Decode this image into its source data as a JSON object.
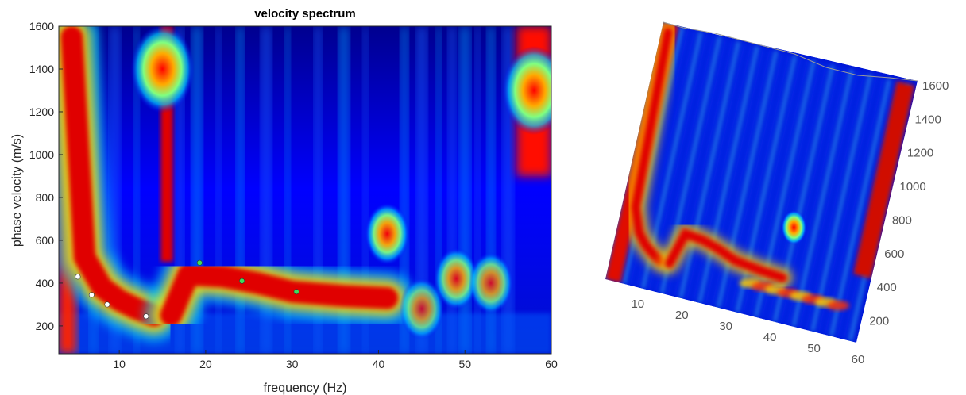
{
  "chart_data": [
    {
      "type": "heatmap",
      "title": "velocity spectrum",
      "xlabel": "frequency (Hz)",
      "ylabel": "phase velocity (m/s)",
      "xlim": [
        3,
        60
      ],
      "ylim": [
        70,
        1600
      ],
      "xticks": [
        "10",
        "20",
        "30",
        "40",
        "50",
        "60"
      ],
      "yticks": [
        "200",
        "400",
        "600",
        "800",
        "1000",
        "1200",
        "1400",
        "1600"
      ],
      "colormap": "jet",
      "grid": false,
      "ridges": [
        {
          "name": "",
          "points": [
            [
              4.5,
              1550
            ],
            [
              6,
              520
            ],
            [
              8,
              380
            ],
            [
              10,
              320
            ],
            [
              12,
              280
            ],
            [
              14,
              250
            ]
          ],
          "level": 1.0
        },
        {
          "name": "",
          "points": [
            [
              16,
              250
            ],
            [
              18,
              440
            ],
            [
              22,
              430
            ],
            [
              26,
              400
            ],
            [
              30,
              360
            ],
            [
              36,
              340
            ],
            [
              41,
              330
            ]
          ],
          "level": 0.95
        }
      ],
      "blobs": [
        {
          "x": 41,
          "y": 630,
          "level": 0.95
        },
        {
          "x": 15,
          "y": 1400,
          "level": 1.0
        },
        {
          "x": 58,
          "y": 1300,
          "level": 1.0
        },
        {
          "x": 49,
          "y": 420,
          "level": 0.85
        },
        {
          "x": 53,
          "y": 400,
          "level": 0.8
        },
        {
          "x": 45,
          "y": 280,
          "level": 0.75
        }
      ],
      "picks": {
        "white": {
          "color": "#ffffff",
          "points": [
            [
              5.2,
              430
            ],
            [
              6.8,
              345
            ],
            [
              8.6,
              300
            ],
            [
              13.1,
              245
            ]
          ]
        },
        "green": {
          "color": "#3ddc5c",
          "points": [
            [
              19.3,
              495
            ],
            [
              24.2,
              410
            ],
            [
              30.5,
              360
            ]
          ]
        }
      }
    },
    {
      "type": "surface",
      "title": "",
      "xticks": [
        "10",
        "20",
        "30",
        "40",
        "50",
        "60"
      ],
      "zticks": [
        "200",
        "400",
        "600",
        "800",
        "1000",
        "1200",
        "1400",
        "1600"
      ],
      "colormap": "jet"
    }
  ],
  "colors": {
    "jet_dark_blue": "#00008f",
    "jet_blue": "#0000ff",
    "jet_cyan": "#00ffff",
    "jet_yellow": "#ffff00",
    "jet_red": "#ff0000",
    "jet_dark_red": "#800000"
  }
}
